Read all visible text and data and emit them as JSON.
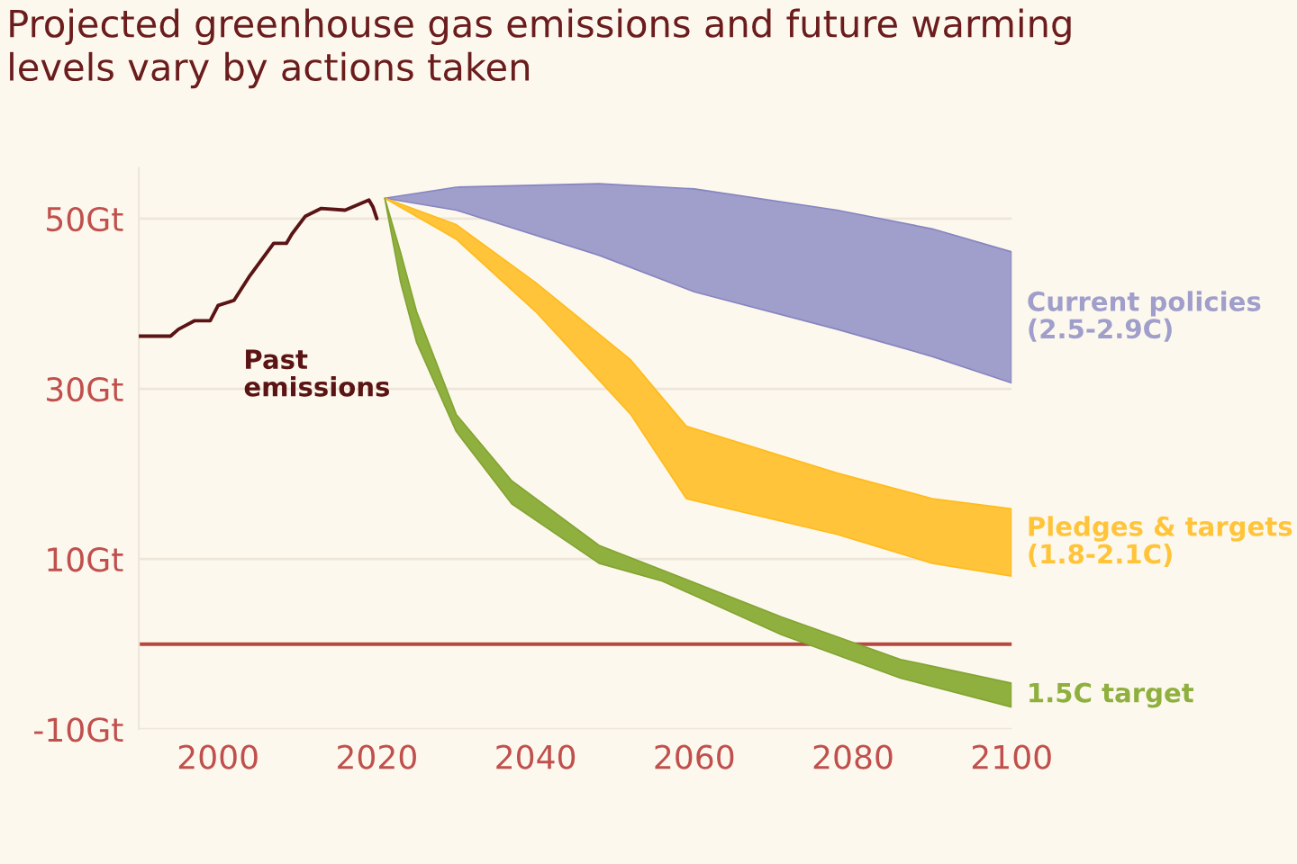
{
  "chart_data": {
    "type": "area",
    "title": "Projected greenhouse gas emissions and future warming\nlevels vary by actions taken",
    "xlim": [
      1990,
      2100
    ],
    "xticks": [
      2000,
      2020,
      2040,
      2060,
      2080,
      2100
    ],
    "ylim": [
      -10,
      56
    ],
    "yticks": [
      {
        "value": 50,
        "label": "50Gt"
      },
      {
        "value": 30,
        "label": "30Gt"
      },
      {
        "value": 10,
        "label": "10Gt"
      },
      {
        "value": -10,
        "label": "-10Gt"
      }
    ],
    "grid": "y",
    "legend": false,
    "ref_lines": [
      {
        "axis": "y",
        "value": 0,
        "color": "#b5483f"
      }
    ],
    "series": [
      {
        "name": "Past\nemissions",
        "type": "line",
        "color": "#5b1414",
        "x": [
          1990,
          1994,
          1995,
          1997,
          1999,
          2000,
          2002,
          2004,
          2007,
          2008.6,
          2009.3,
          2011,
          2013,
          2016,
          2018,
          2019,
          2019.5,
          2020
        ],
        "values": [
          36.2,
          36.2,
          37,
          38,
          38,
          39.8,
          40.4,
          43.3,
          47.1,
          47.1,
          48.2,
          50.3,
          51.2,
          51,
          51.8,
          52.2,
          51.4,
          50
        ]
      },
      {
        "name": "Current policies\n(2.5-2.9C)",
        "color": "#a09fcb",
        "x": [
          2021,
          2030,
          2048,
          2060,
          2078,
          2090,
          2100
        ],
        "values": [
          null,
          null,
          null,
          null,
          null,
          null,
          null
        ],
        "upper": [
          52.4,
          53.7,
          54.1,
          53.5,
          51,
          48.8,
          46.1
        ],
        "lower": [
          52.4,
          51,
          45.7,
          41.4,
          37,
          33.8,
          30.7
        ]
      },
      {
        "name": "Pledges & targets\n(1.8-2.1C)",
        "color": "#ffc43a",
        "x": [
          2021,
          2030,
          2040,
          2052,
          2059,
          2078,
          2090,
          2100
        ],
        "values": [
          null,
          null,
          null,
          null,
          null,
          null,
          null,
          null
        ],
        "upper": [
          52.4,
          49.3,
          42.5,
          33.4,
          25.6,
          20.1,
          17.1,
          15.9
        ],
        "lower": [
          52.4,
          47.6,
          39.1,
          27,
          17.1,
          12.9,
          9.5,
          8
        ]
      },
      {
        "name": "1.5C target",
        "color": "#8fb03e",
        "x": [
          2021,
          2023,
          2025,
          2030,
          2037,
          2048,
          2056,
          2071,
          2086,
          2100
        ],
        "values": [
          null,
          null,
          null,
          null,
          null,
          null,
          null,
          null,
          null,
          null
        ],
        "upper": [
          52.4,
          46,
          39.1,
          27,
          19.2,
          11.6,
          8.7,
          3.2,
          -1.8,
          -4.6
        ],
        "lower": [
          52.4,
          42.5,
          35.5,
          25,
          16.5,
          9.5,
          7.4,
          1.1,
          -4,
          -7.4
        ]
      }
    ]
  }
}
